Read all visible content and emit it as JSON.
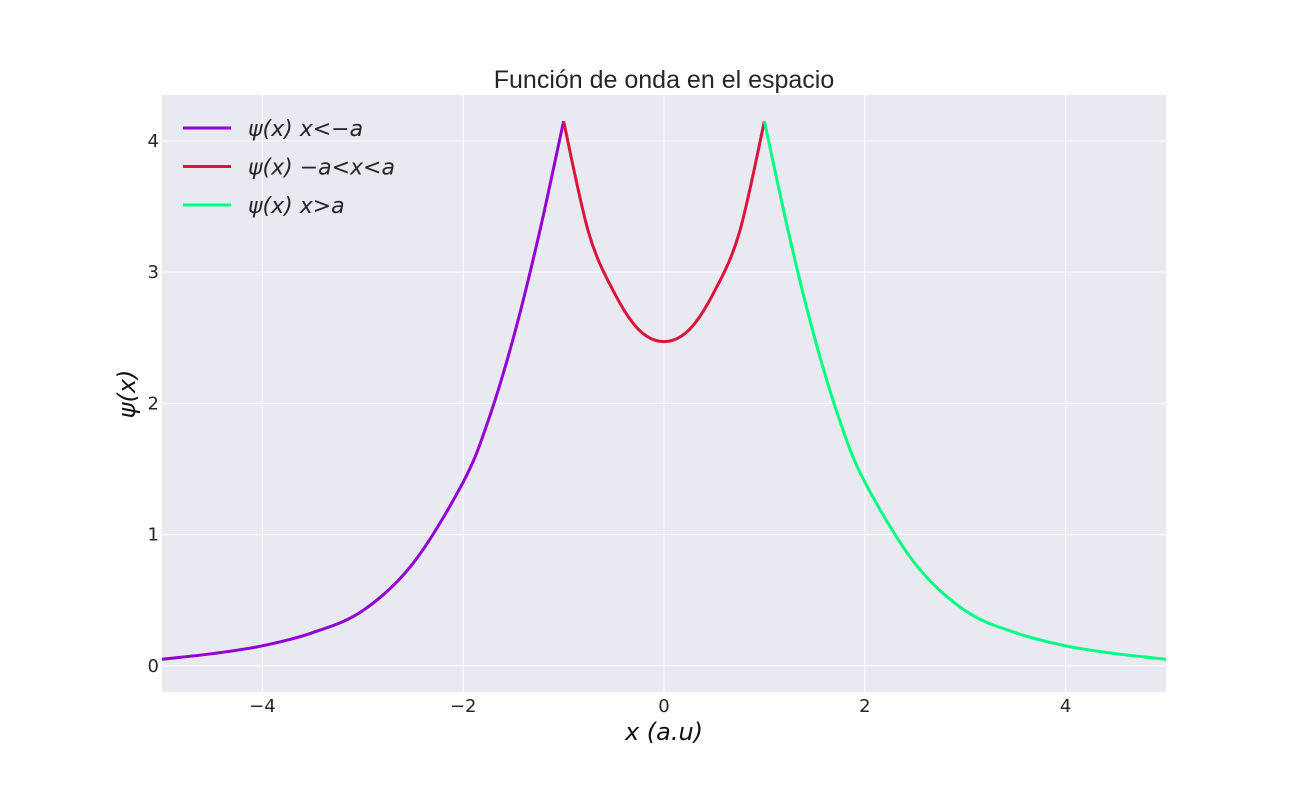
{
  "chart_data": {
    "type": "line",
    "title": "Función de onda en el espacio",
    "xlabel": "x (a.u)",
    "ylabel": "ψ(x)",
    "xlim": [
      -5,
      5
    ],
    "ylim": [
      -0.2,
      4.35
    ],
    "x_ticks": [
      -4,
      -2,
      0,
      2,
      4
    ],
    "x_tick_labels": [
      "−4",
      "−2",
      "0",
      "2",
      "4"
    ],
    "y_ticks": [
      0,
      1,
      2,
      3,
      4
    ],
    "y_tick_labels": [
      "0",
      "1",
      "2",
      "3",
      "4"
    ],
    "grid": true,
    "legend_position": "top-left",
    "background": "#e9e9f1",
    "series": [
      {
        "name": "ψ(x) x<−a",
        "color": "#9400d3",
        "x": [
          -5,
          -4.5,
          -4,
          -3.5,
          -3,
          -2.5,
          -2,
          -1.75,
          -1.5,
          -1.25,
          -1
        ],
        "y": [
          0.05,
          0.092,
          0.152,
          0.252,
          0.42,
          0.78,
          1.4,
          1.87,
          2.5,
          3.27,
          4.15
        ]
      },
      {
        "name": "ψ(x) −a<x<a",
        "color": "#dc143c",
        "x": [
          -1,
          -0.75,
          -0.5,
          -0.25,
          0,
          0.25,
          0.5,
          0.75,
          1
        ],
        "y": [
          4.15,
          3.3,
          2.85,
          2.56,
          2.47,
          2.56,
          2.85,
          3.3,
          4.15
        ]
      },
      {
        "name": "ψ(x) x>a",
        "color": "#00ff7f",
        "x": [
          1,
          1.25,
          1.5,
          1.75,
          2,
          2.5,
          3,
          3.5,
          4,
          4.5,
          5
        ],
        "y": [
          4.15,
          3.27,
          2.5,
          1.87,
          1.4,
          0.78,
          0.42,
          0.252,
          0.152,
          0.092,
          0.05
        ]
      }
    ]
  }
}
